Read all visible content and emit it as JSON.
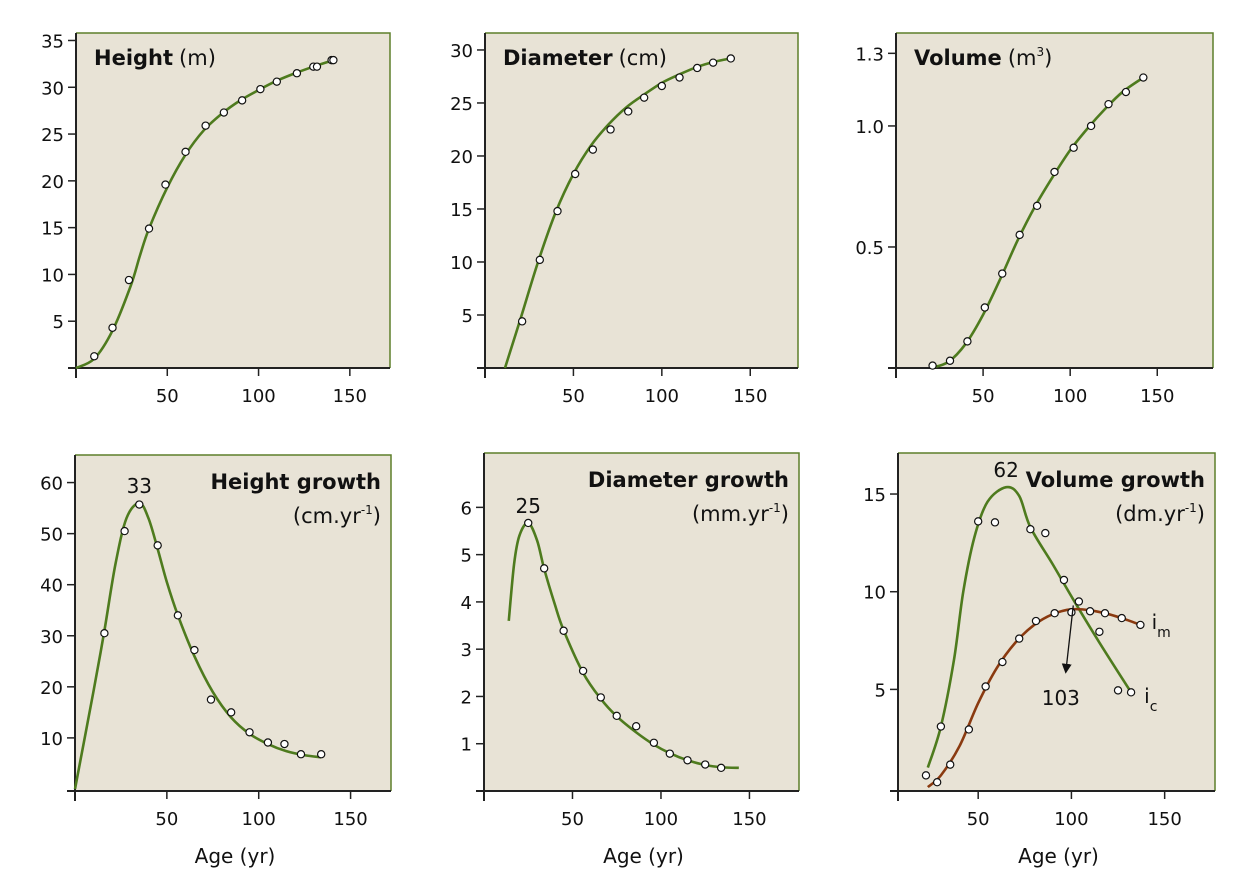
{
  "colors": {
    "panel_bg": "#e8e3d6",
    "frame": "#5d7f2a",
    "axis": "#222222",
    "curve_green": "#4e7b1e",
    "curve_brown": "#8a3a10",
    "marker_fill": "#ffffff"
  },
  "chart_data": [
    {
      "type": "scatter",
      "title_bold": "Height",
      "title_unit": "(m)",
      "title_sup": "",
      "title_unit_post": "",
      "xlabel": "",
      "xlim": [
        0,
        172
      ],
      "ylim": [
        0,
        35.8
      ],
      "xticks": [
        50,
        100,
        150
      ],
      "yticks": [
        5,
        10,
        15,
        20,
        25,
        30,
        35
      ],
      "ytick_labels": [
        "5",
        "10",
        "15",
        "20",
        "25",
        "30",
        "35"
      ],
      "series": [
        {
          "color": "curve_green",
          "points": [
            [
              10,
              1.25
            ],
            [
              20,
              4.3
            ],
            [
              29,
              9.4
            ],
            [
              40,
              14.9
            ],
            [
              49,
              19.6
            ],
            [
              60,
              23.1
            ],
            [
              71,
              25.9
            ],
            [
              81,
              27.3
            ],
            [
              91,
              28.6
            ],
            [
              101,
              29.8
            ],
            [
              110,
              30.6
            ],
            [
              121,
              31.5
            ],
            [
              130,
              32.2
            ],
            [
              132,
              32.2
            ],
            [
              140,
              32.9
            ],
            [
              141,
              32.9
            ]
          ],
          "curve": [
            [
              0,
              0
            ],
            [
              10,
              1.0
            ],
            [
              20,
              4.0
            ],
            [
              30,
              8.8
            ],
            [
              35,
              12
            ],
            [
              40,
              14.9
            ],
            [
              50,
              19.3
            ],
            [
              60,
              22.8
            ],
            [
              70,
              25.4
            ],
            [
              80,
              27.2
            ],
            [
              90,
              28.6
            ],
            [
              100,
              29.7
            ],
            [
              110,
              30.7
            ],
            [
              120,
              31.5
            ],
            [
              130,
              32.2
            ],
            [
              141,
              32.9
            ]
          ]
        }
      ]
    },
    {
      "type": "scatter",
      "title_bold": "Diameter",
      "title_unit": "(cm)",
      "title_sup": "",
      "title_unit_post": "",
      "xlabel": "",
      "xlim": [
        0,
        177
      ],
      "ylim": [
        0,
        31.6
      ],
      "xticks": [
        50,
        100,
        150
      ],
      "yticks": [
        5,
        10,
        15,
        20,
        25,
        30
      ],
      "ytick_labels": [
        "5",
        "10",
        "15",
        "20",
        "25",
        "30"
      ],
      "series": [
        {
          "color": "curve_green",
          "points": [
            [
              21,
              4.4
            ],
            [
              31,
              10.2
            ],
            [
              41,
              14.8
            ],
            [
              51,
              18.3
            ],
            [
              61,
              20.6
            ],
            [
              71,
              22.5
            ],
            [
              81,
              24.2
            ],
            [
              90,
              25.5
            ],
            [
              100,
              26.6
            ],
            [
              110,
              27.4
            ],
            [
              120,
              28.3
            ],
            [
              129,
              28.8
            ],
            [
              139,
              29.2
            ]
          ],
          "curve": [
            [
              11.3,
              0
            ],
            [
              20,
              4.6
            ],
            [
              30,
              10
            ],
            [
              40,
              14.7
            ],
            [
              50,
              18.3
            ],
            [
              60,
              21.0
            ],
            [
              70,
              23.0
            ],
            [
              80,
              24.6
            ],
            [
              90,
              25.8
            ],
            [
              100,
              26.9
            ],
            [
              110,
              27.7
            ],
            [
              120,
              28.4
            ],
            [
              130,
              28.9
            ],
            [
              139,
              29.2
            ]
          ]
        }
      ]
    },
    {
      "type": "scatter",
      "title_bold": "Volume",
      "title_unit": "(m",
      "title_sup": "3",
      "title_unit_post": ")",
      "xlabel": "",
      "xlim": [
        0,
        182
      ],
      "ylim": [
        0,
        1.384
      ],
      "xticks": [
        50,
        100,
        150
      ],
      "yticks": [
        0.5,
        1.0,
        1.3
      ],
      "ytick_labels": [
        "0.5",
        "1.0",
        "1.3"
      ],
      "series": [
        {
          "color": "curve_green",
          "points": [
            [
              21,
              0.01
            ],
            [
              31,
              0.03
            ],
            [
              41,
              0.11
            ],
            [
              51,
              0.25
            ],
            [
              61,
              0.39
            ],
            [
              71,
              0.55
            ],
            [
              81,
              0.67
            ],
            [
              91,
              0.81
            ],
            [
              102,
              0.91
            ],
            [
              112,
              1.0
            ],
            [
              122,
              1.09
            ],
            [
              132,
              1.14
            ],
            [
              142,
              1.2
            ]
          ],
          "curve": [
            [
              20,
              0
            ],
            [
              30,
              0.025
            ],
            [
              40,
              0.1
            ],
            [
              50,
              0.22
            ],
            [
              60,
              0.37
            ],
            [
              70,
              0.53
            ],
            [
              80,
              0.67
            ],
            [
              90,
              0.79
            ],
            [
              100,
              0.9
            ],
            [
              110,
              0.99
            ],
            [
              120,
              1.07
            ],
            [
              130,
              1.14
            ],
            [
              142,
              1.2
            ]
          ]
        }
      ]
    },
    {
      "type": "scatter",
      "title_bold": "Height growth",
      "title_unit": "(cm.yr",
      "title_sup": "-1",
      "title_unit_post": ")",
      "xlabel": "Age (yr)",
      "xlim": [
        0,
        172
      ],
      "ylim": [
        -0.4,
        65.4
      ],
      "xticks": [
        50,
        100,
        150
      ],
      "yticks": [
        10,
        20,
        30,
        40,
        50,
        60
      ],
      "ytick_labels": [
        "10",
        "20",
        "30",
        "40",
        "50",
        "60"
      ],
      "peak": {
        "label": "33",
        "x": 35,
        "y": 56
      },
      "series": [
        {
          "color": "curve_green",
          "points": [
            [
              16,
              30.5
            ],
            [
              27,
              50.5
            ],
            [
              35,
              55.7
            ],
            [
              45,
              47.7
            ],
            [
              56,
              34.0
            ],
            [
              65,
              27.2
            ],
            [
              74,
              17.5
            ],
            [
              85,
              15.0
            ],
            [
              95,
              11.1
            ],
            [
              105,
              9.1
            ],
            [
              114,
              8.8
            ],
            [
              123,
              6.8
            ],
            [
              134,
              6.8
            ]
          ],
          "curve": [
            [
              0,
              0
            ],
            [
              10,
              19
            ],
            [
              16,
              31
            ],
            [
              22,
              44
            ],
            [
              28,
              53
            ],
            [
              35,
              56
            ],
            [
              40,
              53
            ],
            [
              45,
              47
            ],
            [
              50,
              40.5
            ],
            [
              56,
              34
            ],
            [
              65,
              26
            ],
            [
              75,
              19
            ],
            [
              85,
              14
            ],
            [
              95,
              10.8
            ],
            [
              105,
              8.8
            ],
            [
              115,
              7.4
            ],
            [
              125,
              6.6
            ],
            [
              134,
              6.2
            ]
          ]
        }
      ]
    },
    {
      "type": "scatter",
      "title_bold": "Diameter growth",
      "title_unit": "(mm.yr",
      "title_sup": "-1",
      "title_unit_post": ")",
      "xlabel": "Age (yr)",
      "xlim": [
        0,
        178
      ],
      "ylim": [
        0,
        7.15
      ],
      "xticks": [
        50,
        100,
        150
      ],
      "yticks": [
        1,
        2,
        3,
        4,
        5,
        6
      ],
      "ytick_labels": [
        "1",
        "2",
        "3",
        "4",
        "5",
        "6"
      ],
      "peak": {
        "label": "25",
        "x": 25,
        "y": 5.67
      },
      "series": [
        {
          "color": "curve_green",
          "points": [
            [
              25,
              5.67
            ],
            [
              34,
              4.71
            ],
            [
              45,
              3.39
            ],
            [
              56,
              2.54
            ],
            [
              66,
              1.98
            ],
            [
              75,
              1.59
            ],
            [
              86,
              1.37
            ],
            [
              96,
              1.02
            ],
            [
              105,
              0.79
            ],
            [
              115,
              0.65
            ],
            [
              125,
              0.56
            ],
            [
              134,
              0.49
            ]
          ],
          "curve": [
            [
              14,
              3.6
            ],
            [
              17,
              4.8
            ],
            [
              20,
              5.4
            ],
            [
              25,
              5.67
            ],
            [
              30,
              5.3
            ],
            [
              34,
              4.7
            ],
            [
              40,
              3.95
            ],
            [
              45,
              3.4
            ],
            [
              56,
              2.5
            ],
            [
              66,
              1.95
            ],
            [
              75,
              1.58
            ],
            [
              86,
              1.24
            ],
            [
              96,
              0.98
            ],
            [
              105,
              0.8
            ],
            [
              115,
              0.65
            ],
            [
              125,
              0.55
            ],
            [
              135,
              0.5
            ],
            [
              144,
              0.49
            ]
          ]
        }
      ]
    },
    {
      "type": "scatter",
      "title_bold": "Volume growth",
      "title_unit": "(dm.yr",
      "title_sup": "-1",
      "title_unit_post": ")",
      "xlabel": "Age (yr)",
      "xlim": [
        7,
        177
      ],
      "ylim": [
        -0.2,
        17.1
      ],
      "xticks": [
        50,
        100,
        150
      ],
      "yticks": [
        5,
        10,
        15
      ],
      "ytick_labels": [
        "5",
        "10",
        "15"
      ],
      "peak": {
        "label": "62",
        "x": 65,
        "y": 15.35
      },
      "crossing": {
        "label": "103",
        "from": [
          101,
          9.3
        ],
        "to": [
          97,
          5.9
        ]
      },
      "series": [
        {
          "label": "i",
          "label_sub": "c",
          "label_at": [
            139,
            4.3
          ],
          "color": "curve_green",
          "points": [
            [
              22,
              0.6
            ],
            [
              30,
              3.1
            ],
            [
              50,
              13.6
            ],
            [
              59,
              13.55
            ],
            [
              78,
              13.2
            ],
            [
              86,
              13.0
            ],
            [
              96,
              10.6
            ],
            [
              125,
              4.95
            ],
            [
              132,
              4.85
            ]
          ],
          "curve": [
            [
              23,
              1.0
            ],
            [
              30,
              3.1
            ],
            [
              37,
              6.5
            ],
            [
              42,
              10
            ],
            [
              48,
              12.8
            ],
            [
              55,
              14.6
            ],
            [
              65,
              15.35
            ],
            [
              72,
              14.9
            ],
            [
              78,
              13.3
            ],
            [
              90,
              11.4
            ],
            [
              101,
              9.6
            ],
            [
              115,
              7.4
            ],
            [
              131,
              5.0
            ]
          ]
        },
        {
          "label": "i",
          "label_sub": "m",
          "label_at": [
            143,
            8.1
          ],
          "color": "curve_brown",
          "points": [
            [
              28,
              0.25
            ],
            [
              35,
              1.15
            ],
            [
              45,
              2.95
            ],
            [
              54,
              5.15
            ],
            [
              63,
              6.4
            ],
            [
              72,
              7.6
            ],
            [
              81,
              8.5
            ],
            [
              91,
              8.9
            ],
            [
              100,
              8.95
            ],
            [
              104,
              9.5
            ],
            [
              110,
              9.0
            ],
            [
              115,
              7.95
            ],
            [
              118,
              8.9
            ],
            [
              127,
              8.65
            ],
            [
              137,
              8.3
            ]
          ],
          "curve": [
            [
              23,
              0
            ],
            [
              30,
              0.6
            ],
            [
              40,
              2.1
            ],
            [
              50,
              4.3
            ],
            [
              60,
              6.1
            ],
            [
              70,
              7.4
            ],
            [
              80,
              8.3
            ],
            [
              90,
              8.85
            ],
            [
              100,
              9.1
            ],
            [
              110,
              9.05
            ],
            [
              120,
              8.85
            ],
            [
              130,
              8.55
            ],
            [
              137,
              8.3
            ]
          ]
        }
      ]
    }
  ]
}
